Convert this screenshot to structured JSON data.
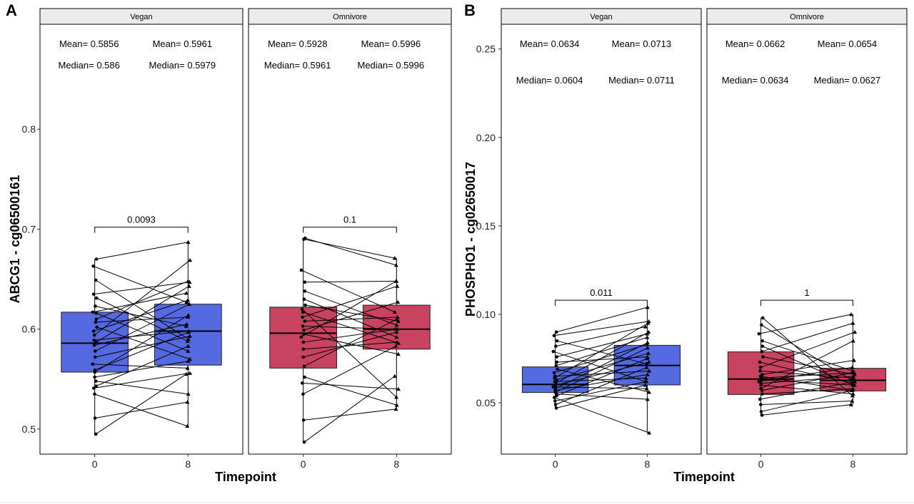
{
  "colors": {
    "vegan": "#5569e0",
    "omnivore": "#c8435f",
    "point": "#000000",
    "panel_border": "#000000",
    "strip_fill": "#ebebeb"
  },
  "chart_data": [
    {
      "type": "box",
      "panel_label": "A",
      "ylabel": "ABCG1 - cg06500161",
      "xlabel": "Timepoint",
      "ylim": [
        0.475,
        0.905
      ],
      "yticks": [
        0.5,
        0.6,
        0.7,
        0.8
      ],
      "ytick_labels": [
        "0.5",
        "0.6",
        "0.7",
        "0.8"
      ],
      "facets": [
        {
          "name": "Vegan",
          "color_key": "vegan",
          "categories": [
            "0",
            "8"
          ],
          "stats": {
            "mean": [
              "Mean= 0.5856",
              "Mean= 0.5961"
            ],
            "median": [
              "Median= 0.586",
              "Median= 0.5979"
            ]
          },
          "boxes": [
            {
              "q1": 0.557,
              "median": 0.586,
              "q3": 0.617
            },
            {
              "q1": 0.564,
              "median": 0.598,
              "q3": 0.625
            }
          ],
          "p_value": "0.0093",
          "p_y": 0.702,
          "pairs": [
            [
              0.495,
              0.555
            ],
            [
              0.511,
              0.527
            ],
            [
              0.535,
              0.503
            ],
            [
              0.541,
              0.556
            ],
            [
              0.543,
              0.583
            ],
            [
              0.548,
              0.535
            ],
            [
              0.552,
              0.568
            ],
            [
              0.557,
              0.614
            ],
            [
              0.559,
              0.597
            ],
            [
              0.565,
              0.561
            ],
            [
              0.572,
              0.593
            ],
            [
              0.578,
              0.625
            ],
            [
              0.584,
              0.605
            ],
            [
              0.587,
              0.643
            ],
            [
              0.589,
              0.598
            ],
            [
              0.594,
              0.669
            ],
            [
              0.598,
              0.629
            ],
            [
              0.602,
              0.57
            ],
            [
              0.607,
              0.612
            ],
            [
              0.61,
              0.648
            ],
            [
              0.616,
              0.578
            ],
            [
              0.617,
              0.636
            ],
            [
              0.623,
              0.603
            ],
            [
              0.631,
              0.588
            ],
            [
              0.635,
              0.647
            ],
            [
              0.649,
              0.59
            ],
            [
              0.663,
              0.627
            ],
            [
              0.67,
              0.687
            ]
          ]
        },
        {
          "name": "Omnivore",
          "color_key": "omnivore",
          "categories": [
            "0",
            "8"
          ],
          "stats": {
            "mean": [
              "Mean= 0.5928",
              "Mean= 0.5996"
            ],
            "median": [
              "Median= 0.5961",
              "Median= 0.5996"
            ]
          },
          "boxes": [
            {
              "q1": 0.561,
              "median": 0.596,
              "q3": 0.622
            },
            {
              "q1": 0.58,
              "median": 0.6,
              "q3": 0.624
            }
          ],
          "p_value": "0.1",
          "p_y": 0.702,
          "pairs": [
            [
              0.487,
              0.553
            ],
            [
              0.509,
              0.52
            ],
            [
              0.535,
              0.583
            ],
            [
              0.546,
              0.54
            ],
            [
              0.552,
              0.524
            ],
            [
              0.563,
              0.61
            ],
            [
              0.572,
              0.597
            ],
            [
              0.58,
              0.587
            ],
            [
              0.587,
              0.6
            ],
            [
              0.592,
              0.648
            ],
            [
              0.595,
              0.575
            ],
            [
              0.599,
              0.627
            ],
            [
              0.603,
              0.6
            ],
            [
              0.608,
              0.612
            ],
            [
              0.612,
              0.643
            ],
            [
              0.617,
              0.586
            ],
            [
              0.62,
              0.532
            ],
            [
              0.624,
              0.608
            ],
            [
              0.63,
              0.592
            ],
            [
              0.638,
              0.604
            ],
            [
              0.647,
              0.648
            ],
            [
              0.659,
              0.617
            ],
            [
              0.69,
              0.671
            ],
            [
              0.691,
              0.664
            ]
          ]
        }
      ]
    },
    {
      "type": "box",
      "panel_label": "B",
      "ylabel": "PHOSPHO1 - cg02650017",
      "xlabel": "Timepoint",
      "ylim": [
        0.021,
        0.264
      ],
      "yticks": [
        0.05,
        0.1,
        0.15,
        0.2,
        0.25
      ],
      "ytick_labels": [
        "0.05",
        "0.10",
        "0.15",
        "0.20",
        "0.25"
      ],
      "facets": [
        {
          "name": "Vegan",
          "color_key": "vegan",
          "categories": [
            "0",
            "8"
          ],
          "stats": {
            "mean": [
              "Mean= 0.0634",
              "Mean= 0.0713"
            ],
            "median": [
              "Median= 0.0604",
              "Median= 0.0711"
            ]
          },
          "boxes": [
            {
              "q1": 0.0558,
              "median": 0.0604,
              "q3": 0.0703
            },
            {
              "q1": 0.0601,
              "median": 0.0711,
              "q3": 0.0825
            }
          ],
          "p_value": "0.011",
          "p_y": 0.108,
          "pairs": [
            [
              0.047,
              0.06
            ],
            [
              0.049,
              0.07
            ],
            [
              0.051,
              0.062
            ],
            [
              0.053,
              0.033
            ],
            [
              0.054,
              0.075
            ],
            [
              0.055,
              0.052
            ],
            [
              0.056,
              0.081
            ],
            [
              0.057,
              0.066
            ],
            [
              0.058,
              0.084
            ],
            [
              0.059,
              0.058
            ],
            [
              0.06,
              0.073
            ],
            [
              0.061,
              0.09
            ],
            [
              0.062,
              0.064
            ],
            [
              0.063,
              0.078
            ],
            [
              0.064,
              0.095
            ],
            [
              0.065,
              0.068
            ],
            [
              0.067,
              0.083
            ],
            [
              0.069,
              0.056
            ],
            [
              0.071,
              0.087
            ],
            [
              0.073,
              0.076
            ],
            [
              0.076,
              0.089
            ],
            [
              0.079,
              0.062
            ],
            [
              0.082,
              0.093
            ],
            [
              0.085,
              0.072
            ],
            [
              0.088,
              0.096
            ],
            [
              0.09,
              0.104
            ]
          ]
        },
        {
          "name": "Omnivore",
          "color_key": "omnivore",
          "categories": [
            "0",
            "8"
          ],
          "stats": {
            "mean": [
              "Mean= 0.0662",
              "Mean= 0.0654"
            ],
            "median": [
              "Median= 0.0634",
              "Median= 0.0627"
            ]
          },
          "boxes": [
            {
              "q1": 0.0547,
              "median": 0.0634,
              "q3": 0.0788
            },
            {
              "q1": 0.0567,
              "median": 0.0627,
              "q3": 0.0695
            }
          ],
          "p_value": "1",
          "p_y": 0.108,
          "pairs": [
            [
              0.043,
              0.049
            ],
            [
              0.045,
              0.057
            ],
            [
              0.049,
              0.051
            ],
            [
              0.052,
              0.062
            ],
            [
              0.055,
              0.058
            ],
            [
              0.057,
              0.067
            ],
            [
              0.058,
              0.085
            ],
            [
              0.06,
              0.055
            ],
            [
              0.061,
              0.065
            ],
            [
              0.062,
              0.07
            ],
            [
              0.063,
              0.06
            ],
            [
              0.064,
              0.067
            ],
            [
              0.065,
              0.057
            ],
            [
              0.066,
              0.074
            ],
            [
              0.068,
              0.064
            ],
            [
              0.07,
              0.09
            ],
            [
              0.073,
              0.061
            ],
            [
              0.076,
              0.066
            ],
            [
              0.079,
              0.095
            ],
            [
              0.082,
              0.06
            ],
            [
              0.085,
              0.068
            ],
            [
              0.089,
              0.1
            ],
            [
              0.094,
              0.063
            ],
            [
              0.098,
              0.054
            ]
          ]
        }
      ]
    }
  ]
}
